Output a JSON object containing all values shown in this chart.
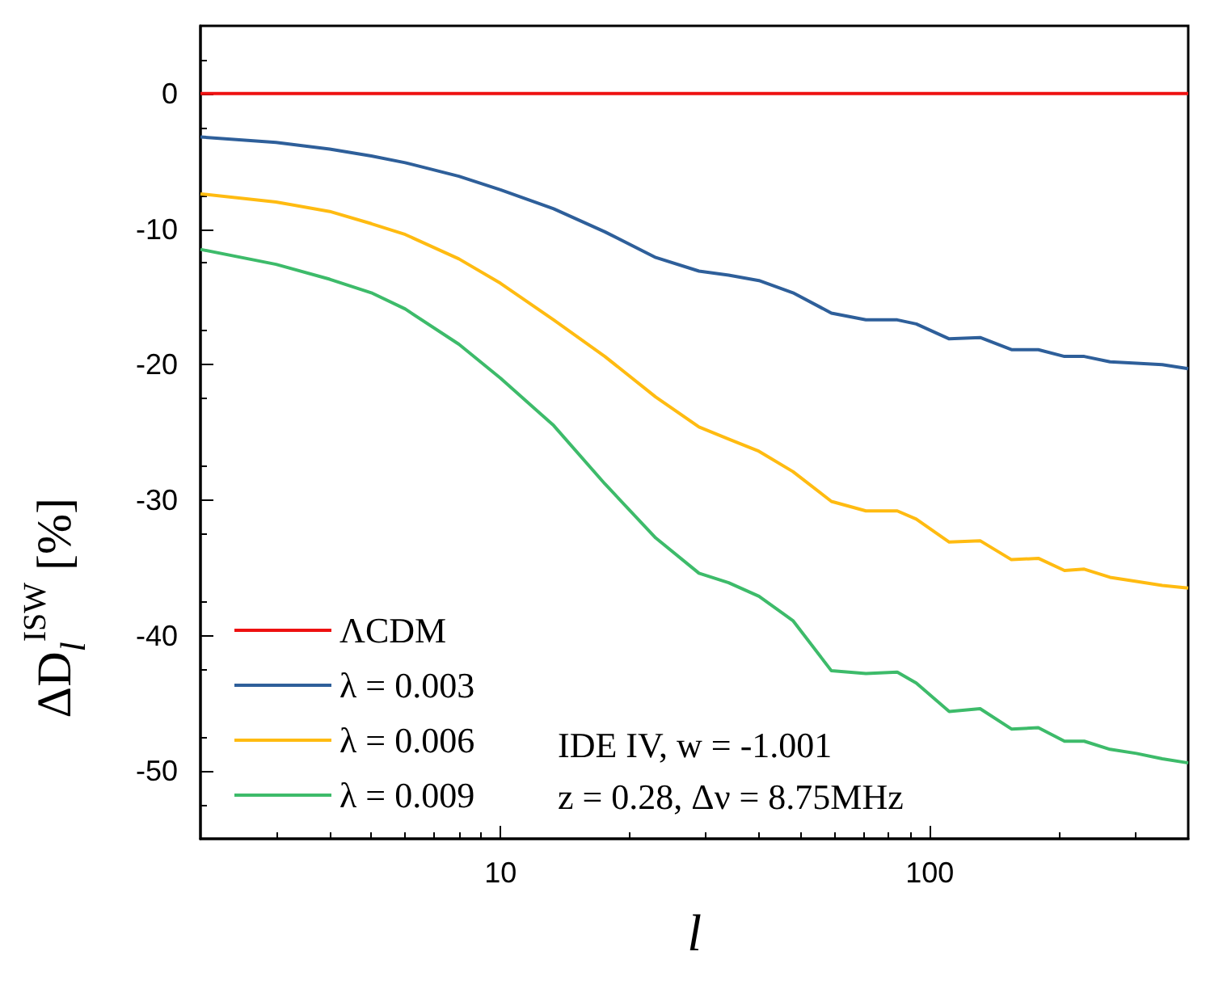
{
  "chart_data": {
    "type": "line",
    "xlabel": "l",
    "ylabel": "ΔD$_{l}$$^{ISW}$ [%]",
    "log": "x",
    "x": [
      2,
      3,
      4,
      5,
      6,
      8,
      10,
      13.3,
      17.5,
      23,
      29,
      34,
      40,
      48,
      59,
      71,
      84,
      93,
      111,
      131,
      155,
      179,
      206,
      229,
      263,
      303,
      348,
      400
    ],
    "series": [
      {
        "name": "ΛCDM",
        "color": "#ee1111",
        "x": [
          2,
          400
        ],
        "values": [
          0,
          0
        ]
      },
      {
        "name": "λ = 0.003",
        "color": "#2e5f9a",
        "values": [
          -3.2,
          -3.6,
          -4.1,
          -4.6,
          -5.1,
          -6.1,
          -7.1,
          -8.5,
          -10.2,
          -12.1,
          -13.1,
          -13.4,
          -13.8,
          -14.7,
          -16.2,
          -16.7,
          -16.7,
          -17.0,
          -18.1,
          -18.0,
          -18.9,
          -18.9,
          -19.4,
          -19.4,
          -19.8,
          -19.9,
          -20.0,
          -20.3
        ]
      },
      {
        "name": "λ = 0.006",
        "color": "#ffbb11",
        "values": [
          -7.4,
          -8.0,
          -8.7,
          -9.6,
          -10.4,
          -12.2,
          -14.0,
          -16.7,
          -19.4,
          -22.4,
          -24.6,
          -25.5,
          -26.4,
          -27.9,
          -30.1,
          -30.8,
          -30.8,
          -31.4,
          -33.1,
          -33.0,
          -34.4,
          -34.3,
          -35.2,
          -35.1,
          -35.7,
          -36.0,
          -36.3,
          -36.5
        ]
      },
      {
        "name": "λ = 0.009",
        "color": "#3dbb6a",
        "values": [
          -11.5,
          -12.6,
          -13.7,
          -14.7,
          -15.9,
          -18.5,
          -21.0,
          -24.5,
          -28.8,
          -32.8,
          -35.4,
          -36.1,
          -37.1,
          -38.9,
          -42.6,
          -42.8,
          -42.7,
          -43.5,
          -45.6,
          -45.4,
          -46.9,
          -46.8,
          -47.8,
          -47.8,
          -48.4,
          -48.7,
          -49.1,
          -49.4
        ]
      }
    ],
    "xlim": [
      2,
      400
    ],
    "xticks": [
      10,
      100
    ],
    "ylim": [
      -55,
      5
    ],
    "yticks": [
      -50,
      -40,
      -30,
      -20,
      -10,
      0
    ],
    "legend": "bottom left",
    "grid": false,
    "marker": "none",
    "line_style": "solid",
    "annotations": [
      "IDE IV, w = -1.001",
      "z = 0.28, Δν = 8.75MHz"
    ]
  }
}
